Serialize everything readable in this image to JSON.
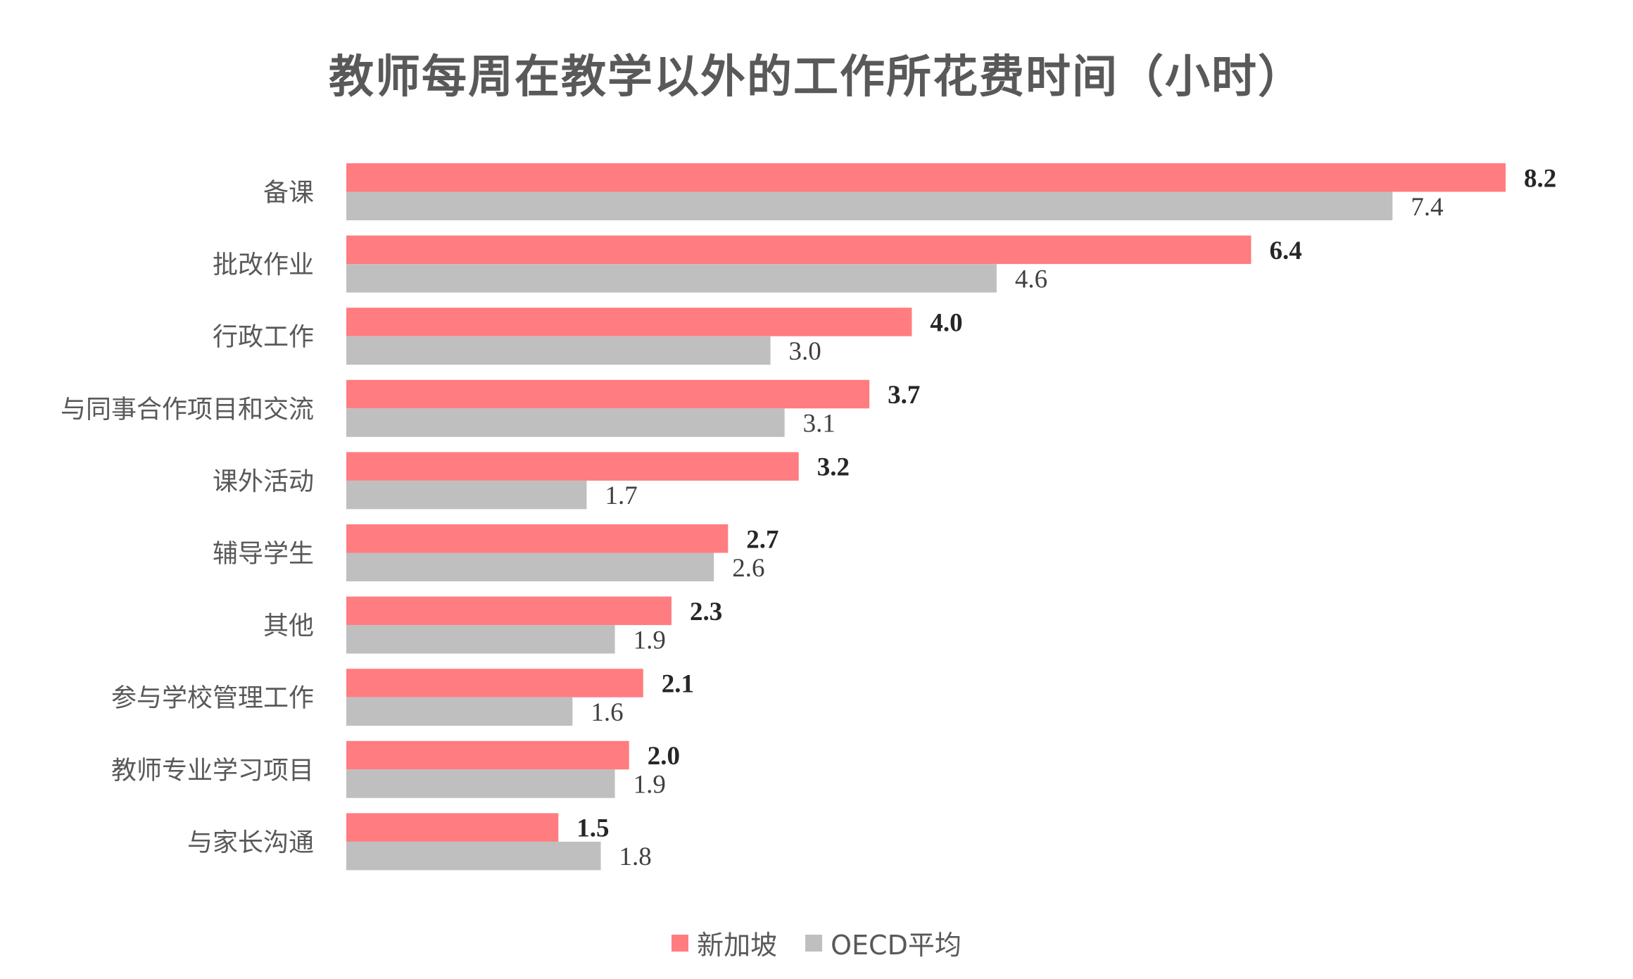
{
  "chart_data": {
    "type": "bar",
    "orientation": "horizontal",
    "title": "教师每周在教学以外的工作所花费时间（小时）",
    "categories": [
      "备课",
      "批改作业",
      "行政工作",
      "与同事合作项目和交流",
      "课外活动",
      "辅导学生",
      "其他",
      "参与学校管理工作",
      "教师专业学习项目",
      "与家长沟通"
    ],
    "series": [
      {
        "name": "新加坡",
        "color": "#FF7C80",
        "values": [
          8.2,
          6.4,
          4.0,
          3.7,
          3.2,
          2.7,
          2.3,
          2.1,
          2.0,
          1.5
        ],
        "labels": [
          "8.2",
          "6.4",
          "4.0",
          "3.7",
          "3.2",
          "2.7",
          "2.3",
          "2.1",
          "2.0",
          "1.5"
        ]
      },
      {
        "name": "OECD平均",
        "color": "#BFBFBF",
        "values": [
          7.4,
          4.6,
          3.0,
          3.1,
          1.7,
          2.6,
          1.9,
          1.6,
          1.9,
          1.8
        ],
        "labels": [
          "7.4",
          "4.6",
          "3.0",
          "3.1",
          "1.7",
          "2.6",
          "1.9",
          "1.6",
          "1.9",
          "1.8"
        ]
      }
    ],
    "xlim": [
      0,
      8.2
    ],
    "grid": false,
    "legend_position": "bottom",
    "data_labels": true
  }
}
